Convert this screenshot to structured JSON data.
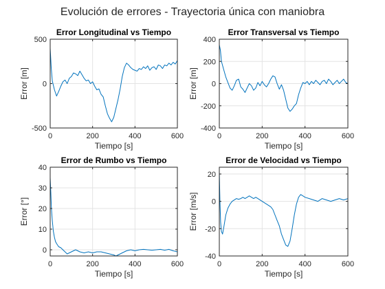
{
  "figure": {
    "title": "Evolución de errores - Trayectoria única con maniobra",
    "line_color": "#0072BD",
    "grid_color": "#e3e3e3",
    "axes_color": "#262626"
  },
  "chart_data": [
    {
      "type": "line",
      "title": "Error Longitudinal vs Tiempo",
      "xlabel": "Tiempo [s]",
      "ylabel": "Error [m]",
      "xlim": [
        0,
        600
      ],
      "ylim": [
        -500,
        500
      ],
      "xticks": [
        0,
        200,
        400,
        600
      ],
      "yticks": [
        -500,
        0,
        500
      ],
      "x": [
        0,
        5,
        10,
        20,
        30,
        40,
        50,
        60,
        70,
        80,
        90,
        100,
        110,
        120,
        130,
        140,
        150,
        160,
        170,
        180,
        190,
        200,
        210,
        220,
        230,
        240,
        250,
        260,
        270,
        280,
        290,
        300,
        310,
        320,
        330,
        340,
        350,
        360,
        370,
        380,
        390,
        400,
        410,
        420,
        430,
        440,
        450,
        460,
        470,
        480,
        490,
        500,
        510,
        520,
        530,
        540,
        550,
        560,
        570,
        580,
        590,
        600
      ],
      "y": [
        400,
        180,
        30,
        -70,
        -140,
        -90,
        -30,
        20,
        40,
        0,
        60,
        80,
        120,
        110,
        90,
        140,
        100,
        60,
        30,
        40,
        0,
        20,
        -30,
        -70,
        -60,
        -120,
        -150,
        -250,
        -340,
        -390,
        -430,
        -380,
        -280,
        -180,
        -60,
        80,
        180,
        230,
        210,
        180,
        160,
        150,
        140,
        170,
        160,
        190,
        170,
        200,
        150,
        180,
        190,
        160,
        210,
        200,
        170,
        210,
        200,
        230,
        210,
        240,
        220,
        260
      ]
    },
    {
      "type": "line",
      "title": "Error Transversal vs Tiempo",
      "xlabel": "Tiempo [s]",
      "ylabel": "Error [m]",
      "xlim": [
        0,
        600
      ],
      "ylim": [
        -400,
        400
      ],
      "xticks": [
        0,
        200,
        400,
        600
      ],
      "yticks": [
        -400,
        -200,
        0,
        200,
        400
      ],
      "x": [
        0,
        5,
        10,
        20,
        30,
        40,
        50,
        60,
        70,
        80,
        90,
        100,
        110,
        120,
        130,
        140,
        150,
        160,
        170,
        180,
        190,
        200,
        210,
        220,
        230,
        240,
        250,
        260,
        270,
        280,
        290,
        300,
        310,
        320,
        330,
        340,
        350,
        360,
        370,
        380,
        390,
        400,
        410,
        420,
        430,
        440,
        450,
        460,
        470,
        480,
        490,
        500,
        510,
        520,
        530,
        540,
        550,
        560,
        570,
        580,
        590,
        600
      ],
      "y": [
        350,
        300,
        200,
        130,
        60,
        10,
        -40,
        -60,
        -20,
        30,
        40,
        -30,
        -50,
        -80,
        -40,
        0,
        -20,
        -60,
        -40,
        10,
        -20,
        20,
        -10,
        -30,
        0,
        40,
        70,
        60,
        0,
        -50,
        -10,
        -60,
        -140,
        -220,
        -250,
        -230,
        -200,
        -180,
        -100,
        -40,
        10,
        0,
        20,
        -10,
        20,
        0,
        30,
        10,
        -10,
        20,
        30,
        0,
        40,
        20,
        -10,
        10,
        30,
        0,
        20,
        40,
        10,
        0
      ]
    },
    {
      "type": "line",
      "title": "Error de Rumbo vs Tiempo",
      "xlabel": "Tiempo [s]",
      "ylabel": "Error [°]",
      "xlim": [
        0,
        600
      ],
      "ylim": [
        -3,
        40
      ],
      "xticks": [
        0,
        200,
        400,
        600
      ],
      "yticks": [
        0,
        10,
        20,
        30,
        40
      ],
      "x": [
        0,
        3,
        6,
        10,
        15,
        20,
        25,
        30,
        40,
        50,
        60,
        70,
        80,
        90,
        100,
        120,
        140,
        160,
        180,
        200,
        220,
        240,
        260,
        280,
        300,
        310,
        320,
        330,
        340,
        350,
        360,
        380,
        400,
        420,
        440,
        460,
        480,
        500,
        520,
        540,
        560,
        580,
        600
      ],
      "y": [
        35,
        28,
        20,
        14,
        9,
        6,
        4,
        3,
        1.5,
        1,
        0,
        -1,
        -2,
        -1.5,
        -1,
        0,
        -1,
        -1.5,
        -1,
        -1.5,
        -1,
        -1,
        -1.5,
        -2,
        -2.5,
        -3,
        -2.5,
        -2,
        -1.5,
        -1,
        -0.5,
        0,
        -0.5,
        0,
        0.2,
        0,
        -0.2,
        0,
        0.2,
        -0.2,
        0.2,
        -0.5,
        -1
      ]
    },
    {
      "type": "line",
      "title": "Error de Velocidad vs Tiempo",
      "xlabel": "Tiempo [s]",
      "ylabel": "Error [m/s]",
      "xlim": [
        0,
        600
      ],
      "ylim": [
        -40,
        25
      ],
      "xticks": [
        0,
        200,
        400,
        600
      ],
      "yticks": [
        -40,
        -20,
        0,
        20
      ],
      "x": [
        0,
        3,
        6,
        10,
        15,
        20,
        25,
        30,
        40,
        50,
        60,
        70,
        80,
        90,
        100,
        110,
        120,
        130,
        140,
        150,
        160,
        170,
        180,
        190,
        200,
        210,
        220,
        230,
        240,
        250,
        260,
        270,
        280,
        290,
        300,
        310,
        320,
        330,
        340,
        350,
        360,
        370,
        380,
        390,
        400,
        420,
        440,
        460,
        480,
        500,
        520,
        540,
        560,
        580,
        600
      ],
      "y": [
        22,
        0,
        -15,
        -22,
        -24,
        -20,
        -15,
        -10,
        -5,
        -2,
        0,
        1,
        2,
        1.5,
        2,
        3,
        2,
        3,
        4,
        3,
        2,
        3,
        2,
        1,
        0,
        -1,
        -2,
        -3,
        -4,
        -6,
        -10,
        -14,
        -18,
        -24,
        -28,
        -32,
        -33,
        -29,
        -20,
        -10,
        -2,
        3,
        5,
        4,
        3,
        2,
        1,
        0,
        2,
        1,
        0,
        1,
        2,
        1,
        2
      ]
    }
  ]
}
